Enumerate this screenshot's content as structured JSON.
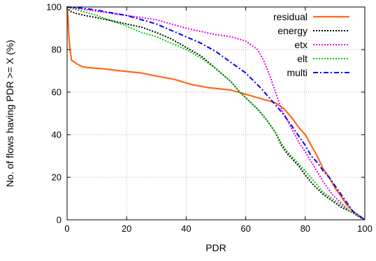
{
  "chart_data": {
    "type": "line",
    "xlabel": "PDR",
    "ylabel": "No. of flows having PDR >= X (%)",
    "xlim": [
      0,
      100
    ],
    "ylim": [
      0,
      100
    ],
    "xticks": [
      0,
      20,
      40,
      60,
      80,
      100
    ],
    "yticks": [
      0,
      20,
      40,
      60,
      80,
      100
    ],
    "grid": true,
    "legend_position": "top-right",
    "series": [
      {
        "name": "residual",
        "color": "#ff6a1a",
        "style": "solid",
        "points": [
          [
            0,
            100
          ],
          [
            0.3,
            95
          ],
          [
            0.6,
            86
          ],
          [
            1,
            80
          ],
          [
            1.5,
            75
          ],
          [
            3,
            73.5
          ],
          [
            5,
            72
          ],
          [
            7,
            71.5
          ],
          [
            12,
            71
          ],
          [
            18,
            70
          ],
          [
            25,
            69
          ],
          [
            30,
            67.5
          ],
          [
            36,
            66
          ],
          [
            42,
            63.5
          ],
          [
            48,
            62
          ],
          [
            55,
            61
          ],
          [
            60,
            59
          ],
          [
            65,
            57
          ],
          [
            70,
            55
          ],
          [
            73,
            52
          ],
          [
            76,
            47
          ],
          [
            78,
            43
          ],
          [
            80,
            40
          ],
          [
            82,
            35
          ],
          [
            84,
            30
          ],
          [
            86,
            24
          ],
          [
            88,
            20
          ],
          [
            90,
            15
          ],
          [
            92,
            11
          ],
          [
            94,
            7
          ],
          [
            96,
            4
          ],
          [
            98,
            2
          ],
          [
            100,
            0
          ]
        ]
      },
      {
        "name": "energy",
        "color": "#000000",
        "style": "dotted",
        "points": [
          [
            0,
            100
          ],
          [
            1,
            98
          ],
          [
            3,
            97
          ],
          [
            6,
            96
          ],
          [
            10,
            95
          ],
          [
            15,
            93.5
          ],
          [
            20,
            92
          ],
          [
            25,
            90.5
          ],
          [
            30,
            88
          ],
          [
            35,
            85
          ],
          [
            40,
            81
          ],
          [
            45,
            77
          ],
          [
            50,
            71
          ],
          [
            55,
            65
          ],
          [
            58,
            60
          ],
          [
            61,
            56
          ],
          [
            64,
            52
          ],
          [
            67,
            47
          ],
          [
            70,
            41
          ],
          [
            72,
            35
          ],
          [
            74,
            31
          ],
          [
            76,
            28
          ],
          [
            78,
            25
          ],
          [
            80,
            21
          ],
          [
            83,
            16
          ],
          [
            86,
            12
          ],
          [
            89,
            9
          ],
          [
            92,
            6
          ],
          [
            95,
            4
          ],
          [
            98,
            1.5
          ],
          [
            100,
            0
          ]
        ]
      },
      {
        "name": "etx",
        "color": "#ee00ee",
        "style": "dotted",
        "points": [
          [
            0,
            100
          ],
          [
            5,
            99
          ],
          [
            10,
            98
          ],
          [
            20,
            96
          ],
          [
            30,
            94
          ],
          [
            40,
            90
          ],
          [
            50,
            87
          ],
          [
            55,
            86
          ],
          [
            60,
            84
          ],
          [
            64,
            80
          ],
          [
            66,
            75
          ],
          [
            68,
            68
          ],
          [
            70,
            60
          ],
          [
            72,
            52
          ],
          [
            75,
            44
          ],
          [
            78,
            36
          ],
          [
            80,
            32
          ],
          [
            83,
            25
          ],
          [
            86,
            18
          ],
          [
            89,
            12
          ],
          [
            92,
            8
          ],
          [
            95,
            4
          ],
          [
            98,
            2
          ],
          [
            100,
            0
          ]
        ]
      },
      {
        "name": "elt",
        "color": "#00cc00",
        "style": "dotted",
        "points": [
          [
            0,
            100
          ],
          [
            5,
            98
          ],
          [
            10,
            96
          ],
          [
            15,
            93.5
          ],
          [
            20,
            91
          ],
          [
            25,
            88
          ],
          [
            30,
            86
          ],
          [
            35,
            83
          ],
          [
            40,
            80
          ],
          [
            45,
            76
          ],
          [
            50,
            71
          ],
          [
            55,
            65
          ],
          [
            58,
            60
          ],
          [
            61,
            56
          ],
          [
            64,
            52
          ],
          [
            67,
            47
          ],
          [
            70,
            41
          ],
          [
            72,
            36
          ],
          [
            74,
            32
          ],
          [
            76,
            29
          ],
          [
            78,
            26
          ],
          [
            80,
            23
          ],
          [
            83,
            18
          ],
          [
            86,
            13
          ],
          [
            89,
            10
          ],
          [
            92,
            7
          ],
          [
            95,
            4
          ],
          [
            98,
            2
          ],
          [
            100,
            0
          ]
        ]
      },
      {
        "name": "multi",
        "color": "#0000ff",
        "style": "dashdot",
        "points": [
          [
            0,
            100
          ],
          [
            5,
            99.5
          ],
          [
            10,
            98.5
          ],
          [
            20,
            96
          ],
          [
            30,
            92
          ],
          [
            40,
            86
          ],
          [
            45,
            83
          ],
          [
            50,
            79
          ],
          [
            55,
            74
          ],
          [
            60,
            69
          ],
          [
            65,
            62
          ],
          [
            70,
            54
          ],
          [
            73,
            49
          ],
          [
            76,
            43
          ],
          [
            78,
            39
          ],
          [
            80,
            35
          ],
          [
            82,
            30
          ],
          [
            84,
            27
          ],
          [
            86,
            23
          ],
          [
            88,
            20
          ],
          [
            90,
            16
          ],
          [
            92,
            12
          ],
          [
            94,
            8
          ],
          [
            96,
            4
          ],
          [
            98,
            2
          ],
          [
            100,
            0
          ]
        ]
      }
    ]
  }
}
